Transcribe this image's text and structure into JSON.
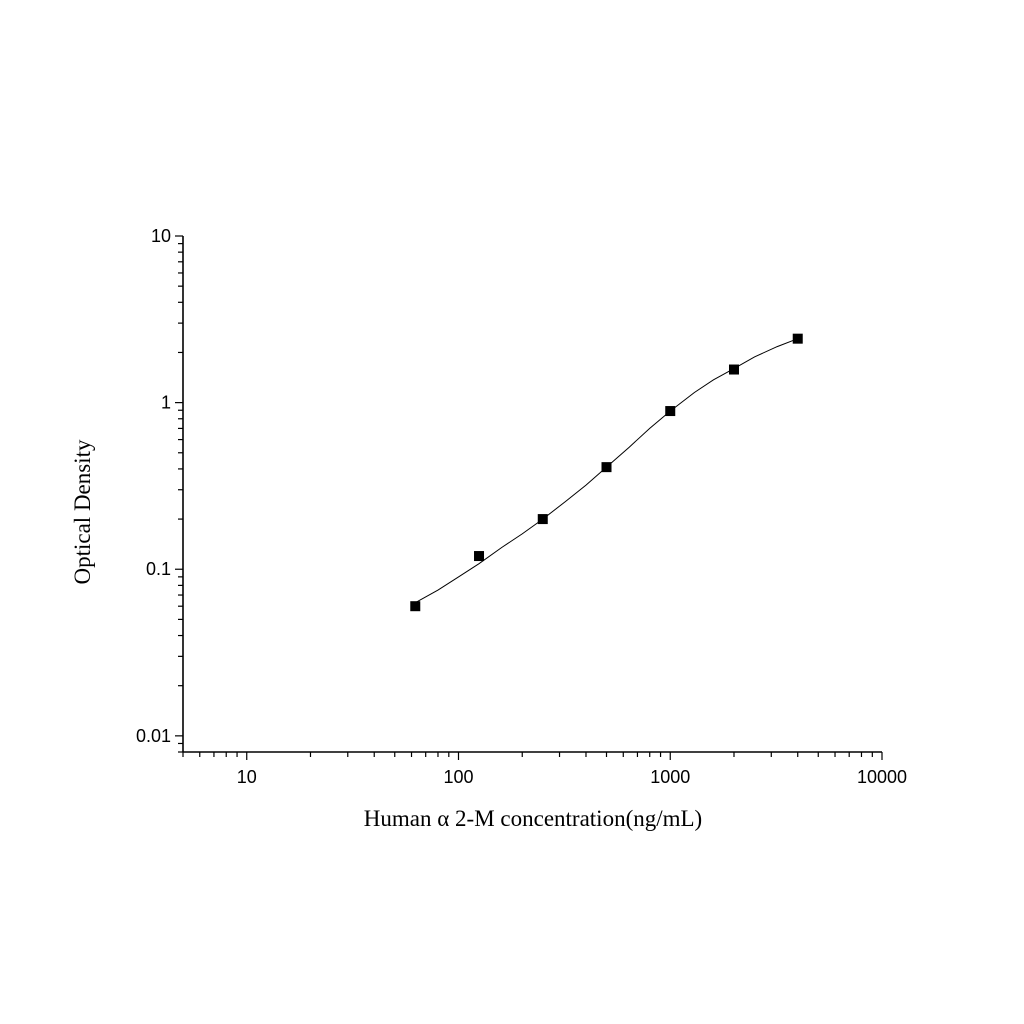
{
  "chart_data": {
    "type": "scatter",
    "title": "",
    "xlabel": "Human α 2-M concentration(ng/mL)",
    "ylabel": "Optical Density",
    "x_scale": "log",
    "y_scale": "log",
    "xlim": [
      5,
      10000
    ],
    "ylim": [
      0.008,
      10
    ],
    "x_ticks": [
      10,
      100,
      1000,
      10000
    ],
    "x_tick_labels": [
      "10",
      "100",
      "1000",
      "10000"
    ],
    "y_ticks": [
      0.01,
      0.1,
      1,
      10
    ],
    "y_tick_labels": [
      "0.01",
      "0.1",
      "1",
      "10"
    ],
    "grid": false,
    "legend": "none",
    "series": [
      {
        "marker": "square",
        "color": "#000000",
        "x": [
          62.5,
          125,
          250,
          500,
          1000,
          2000,
          4000
        ],
        "y": [
          0.06,
          0.12,
          0.2,
          0.41,
          0.89,
          1.58,
          2.42
        ]
      }
    ],
    "fit_curve": {
      "color": "#000000",
      "x": [
        62.5,
        80,
        100,
        125,
        160,
        200,
        250,
        320,
        400,
        500,
        640,
        800,
        1000,
        1300,
        1600,
        2000,
        2500,
        3200,
        4000
      ],
      "y": [
        0.063,
        0.075,
        0.09,
        0.108,
        0.135,
        0.163,
        0.2,
        0.255,
        0.32,
        0.41,
        0.54,
        0.7,
        0.89,
        1.15,
        1.37,
        1.6,
        1.88,
        2.17,
        2.42
      ]
    }
  }
}
